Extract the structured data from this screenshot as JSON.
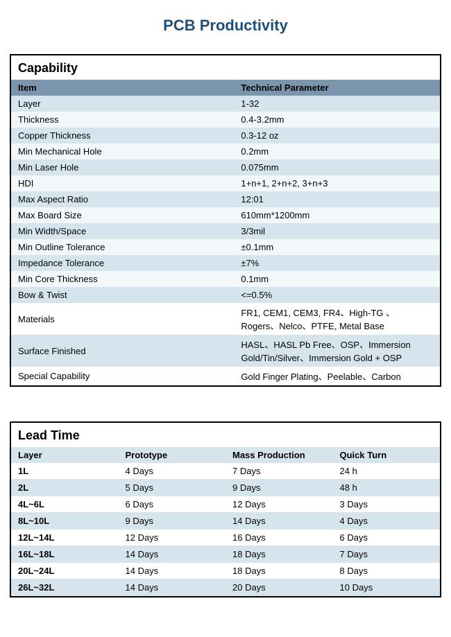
{
  "colors": {
    "title": "#1f4e79",
    "cap_header_bg": "#7b96ac",
    "lt_header_bg": "#d6e5ed",
    "stripe_a": "#d6e5ed",
    "stripe_b": "#f2f7fa",
    "panel_border": "#000000"
  },
  "title": "PCB Productivity",
  "capability": {
    "title": "Capability",
    "columns": [
      "Item",
      "Technical Parameter"
    ],
    "rows": [
      {
        "item": "Layer",
        "value": "1-32",
        "cls": "row-a"
      },
      {
        "item": "Thickness",
        "value": "0.4-3.2mm",
        "cls": "row-b"
      },
      {
        "item": "Copper Thickness",
        "value": "0.3-12 oz",
        "cls": "row-a"
      },
      {
        "item": "Min Mechanical Hole",
        "value": "0.2mm",
        "cls": "row-b"
      },
      {
        "item": "Min Laser Hole",
        "value": "0.075mm",
        "cls": "row-a"
      },
      {
        "item": "HDI",
        "value": "1+n+1, 2+n+2, 3+n+3",
        "cls": "row-b"
      },
      {
        "item": "Max Aspect Ratio",
        "value": "12:01",
        "cls": "row-a"
      },
      {
        "item": "Max Board Size",
        "value": "610mm*1200mm",
        "cls": "row-b"
      },
      {
        "item": "Min Width/Space",
        "value": "3/3mil",
        "cls": "row-a"
      },
      {
        "item": "Min Outline Tolerance",
        "value": "±0.1mm",
        "cls": "row-b"
      },
      {
        "item": "Impedance Tolerance",
        "value": "±7%",
        "cls": "row-a"
      },
      {
        "item": "Min Core Thickness",
        "value": "0.1mm",
        "cls": "row-b"
      },
      {
        "item": "Bow & Twist",
        "value": "<=0.5%",
        "cls": "row-a"
      },
      {
        "item": "Materials",
        "value": "FR1, CEM1, CEM3, FR4、High-TG 、Rogers、Nelco、PTFE, Metal Base",
        "cls": "row-c"
      },
      {
        "item": "Surface Finished",
        "value": "HASL、HASL Pb Free、OSP、Immersion Gold/Tin/Silver、Immersion Gold + OSP",
        "cls": "row-a"
      },
      {
        "item": "Special Capability",
        "value": "Gold Finger Plating、Peelable、Carbon",
        "cls": "row-c"
      }
    ]
  },
  "leadtime": {
    "title": "Lead Time",
    "columns": [
      "Layer",
      "Prototype",
      "Mass Production",
      "Quick Turn"
    ],
    "rows": [
      {
        "c": [
          "1L",
          "4 Days",
          "7 Days",
          "24 h"
        ]
      },
      {
        "c": [
          "2L",
          "5 Days",
          "9 Days",
          "48 h"
        ]
      },
      {
        "c": [
          "4L~6L",
          "6 Days",
          "12 Days",
          "3 Days"
        ]
      },
      {
        "c": [
          "8L~10L",
          "9 Days",
          "14 Days",
          "4 Days"
        ]
      },
      {
        "c": [
          "12L~14L",
          "12 Days",
          "16 Days",
          "6 Days"
        ]
      },
      {
        "c": [
          "16L~18L",
          "14 Days",
          "18 Days",
          "7 Days"
        ]
      },
      {
        "c": [
          "20L~24L",
          "14 Days",
          "18 Days",
          "8 Days"
        ]
      },
      {
        "c": [
          "26L~32L",
          "14 Days",
          "20 Days",
          "10 Days"
        ]
      }
    ]
  }
}
